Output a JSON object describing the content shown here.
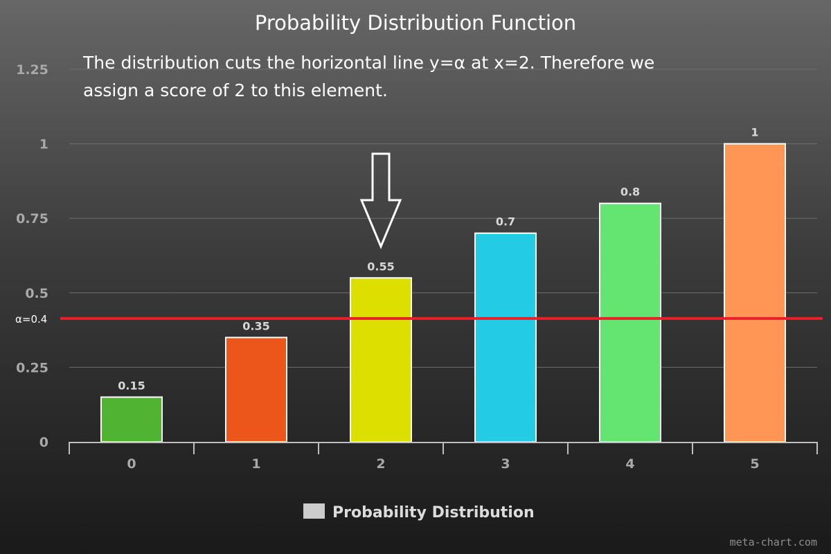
{
  "chart_data": {
    "type": "bar",
    "title": "Probability Distribution Function",
    "annotation_lines": [
      "The distribution cuts the horizontal line y=α at x=2. Therefore we",
      "assign a score of 2 to this element."
    ],
    "categories": [
      "0",
      "1",
      "2",
      "3",
      "4",
      "5"
    ],
    "series": [
      {
        "name": "Probability Distribution",
        "values": [
          0.15,
          0.35,
          0.55,
          0.7,
          0.8,
          1
        ],
        "data_labels": [
          "0.15",
          "0.35",
          "0.55",
          "0.7",
          "0.8",
          "1"
        ],
        "colors": [
          "#50b432",
          "#ed561b",
          "#dddf00",
          "#24cbe5",
          "#64e572",
          "#ff9655"
        ]
      }
    ],
    "yticks": [
      0,
      0.25,
      0.5,
      0.75,
      1,
      1.25
    ],
    "ytick_labels": [
      "0",
      "0.25",
      "0.5",
      "0.75",
      "1",
      "1.25"
    ],
    "ylim": [
      0,
      1.25
    ],
    "grid": true,
    "legend": {
      "position": "bottom-center",
      "label": "Probability Distribution",
      "swatch_color": "#cccccc"
    },
    "threshold": {
      "value": 0.4,
      "label": "α=0.4",
      "color": "#e8202a"
    },
    "arrow_category": "2",
    "watermark": "meta-chart.com"
  }
}
